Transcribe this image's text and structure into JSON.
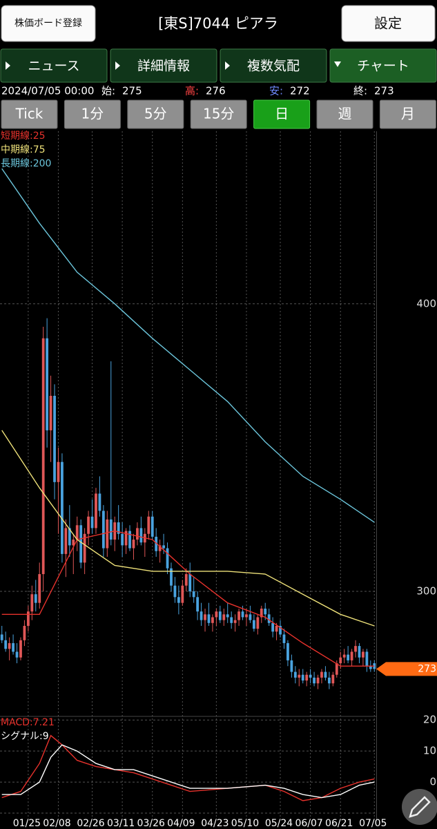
{
  "header": {
    "left_button": "株価ボード登録",
    "title": "[東S]7044 ピアラ",
    "right_button": "設定"
  },
  "tabs": [
    "ニュース",
    "詳細情報",
    "複数気配",
    "チャート"
  ],
  "selected_tab": 3,
  "info": {
    "datetime": "2024/07/05 00:00",
    "prices": [
      {
        "label": "始:",
        "value": 275,
        "color": "#ffffff"
      },
      {
        "label": "高:",
        "value": 276,
        "color": "#ff4444"
      },
      {
        "label": "安:",
        "value": 272,
        "color": "#6f8bff"
      },
      {
        "label": "終:",
        "value": 273,
        "color": "#ffffff"
      }
    ]
  },
  "periods": [
    "Tick",
    "1分",
    "5分",
    "15分",
    "日",
    "週",
    "月"
  ],
  "selected_period": 4,
  "chart_data": [
    {
      "type": "candlestick",
      "up_color": "#e05757",
      "down_color": "#4aa3df",
      "grid": true,
      "ylim": [
        257,
        460
      ],
      "yticks": [
        300,
        400
      ],
      "current_price": 273,
      "current_price_color": "#ff6a13",
      "categories": [
        null,
        null,
        null,
        null,
        null,
        null,
        null,
        "01/25",
        null,
        null,
        null,
        null,
        null,
        null,
        null,
        "02/08",
        null,
        null,
        null,
        null,
        null,
        null,
        null,
        null,
        "02/26",
        null,
        null,
        null,
        null,
        null,
        null,
        null,
        "03/11",
        null,
        null,
        null,
        null,
        null,
        null,
        null,
        "03/26",
        null,
        null,
        null,
        null,
        null,
        null,
        null,
        "04/09",
        null,
        null,
        null,
        null,
        null,
        null,
        null,
        null,
        "04/23",
        null,
        null,
        null,
        null,
        null,
        null,
        null,
        "05/10",
        null,
        null,
        null,
        null,
        null,
        null,
        null,
        null,
        "05/24",
        null,
        null,
        null,
        null,
        null,
        null,
        null,
        "06/07",
        null,
        null,
        null,
        null,
        null,
        null,
        null,
        "06/21",
        null,
        null,
        null,
        null,
        null,
        null,
        null,
        null,
        "07/05"
      ],
      "candles": [
        [
          285,
          288,
          282,
          283
        ],
        [
          283,
          286,
          279,
          280
        ],
        [
          280,
          284,
          276,
          282
        ],
        [
          282,
          285,
          278,
          279
        ],
        [
          279,
          282,
          275,
          277
        ],
        [
          277,
          284,
          276,
          283
        ],
        [
          283,
          290,
          281,
          288
        ],
        [
          288,
          295,
          286,
          293
        ],
        [
          293,
          302,
          290,
          299
        ],
        [
          299,
          304,
          293,
          296
        ],
        [
          296,
          310,
          294,
          306
        ],
        [
          306,
          392,
          300,
          388
        ],
        [
          388,
          395,
          350,
          356
        ],
        [
          356,
          375,
          345,
          368
        ],
        [
          368,
          372,
          332,
          338
        ],
        [
          338,
          350,
          320,
          345
        ],
        [
          345,
          348,
          310,
          313
        ],
        [
          313,
          325,
          305,
          322
        ],
        [
          322,
          330,
          312,
          316
        ],
        [
          316,
          320,
          306,
          318
        ],
        [
          318,
          326,
          314,
          323
        ],
        [
          323,
          325,
          308,
          310
        ],
        [
          310,
          322,
          306,
          320
        ],
        [
          320,
          328,
          316,
          326
        ],
        [
          326,
          332,
          320,
          322
        ],
        [
          322,
          336,
          320,
          334
        ],
        [
          334,
          340,
          326,
          328
        ],
        [
          328,
          330,
          312,
          315
        ],
        [
          315,
          328,
          312,
          325
        ],
        [
          325,
          380,
          316,
          318
        ],
        [
          318,
          326,
          314,
          324
        ],
        [
          324,
          330,
          318,
          320
        ],
        [
          320,
          324,
          312,
          316
        ],
        [
          316,
          322,
          313,
          321
        ],
        [
          321,
          323,
          314,
          315
        ],
        [
          315,
          320,
          311,
          318
        ],
        [
          318,
          324,
          316,
          322
        ],
        [
          322,
          326,
          316,
          317
        ],
        [
          317,
          322,
          312,
          320
        ],
        [
          320,
          328,
          318,
          326
        ],
        [
          326,
          328,
          318,
          319
        ],
        [
          319,
          322,
          312,
          314
        ],
        [
          314,
          318,
          310,
          316
        ],
        [
          316,
          320,
          313,
          315
        ],
        [
          315,
          317,
          306,
          308
        ],
        [
          308,
          310,
          300,
          302
        ],
        [
          302,
          305,
          296,
          298
        ],
        [
          298,
          302,
          292,
          296
        ],
        [
          296,
          304,
          295,
          302
        ],
        [
          302,
          308,
          300,
          306
        ],
        [
          306,
          310,
          298,
          300
        ],
        [
          300,
          305,
          296,
          298
        ],
        [
          298,
          300,
          290,
          293
        ],
        [
          293,
          296,
          288,
          290
        ],
        [
          290,
          294,
          286,
          292
        ],
        [
          292,
          296,
          288,
          289
        ],
        [
          289,
          292,
          286,
          291
        ],
        [
          291,
          294,
          288,
          293
        ],
        [
          293,
          295,
          289,
          290
        ],
        [
          290,
          294,
          288,
          292
        ],
        [
          292,
          296,
          289,
          291
        ],
        [
          291,
          293,
          287,
          289
        ],
        [
          289,
          292,
          286,
          290
        ],
        [
          290,
          294,
          288,
          293
        ],
        [
          293,
          295,
          290,
          291
        ],
        [
          291,
          294,
          288,
          292
        ],
        [
          292,
          295,
          289,
          290
        ],
        [
          290,
          292,
          286,
          287
        ],
        [
          287,
          292,
          285,
          291
        ],
        [
          291,
          295,
          289,
          294
        ],
        [
          294,
          296,
          290,
          292
        ],
        [
          292,
          294,
          288,
          289
        ],
        [
          289,
          291,
          284,
          286
        ],
        [
          286,
          289,
          283,
          288
        ],
        [
          288,
          290,
          284,
          285
        ],
        [
          285,
          287,
          280,
          282
        ],
        [
          282,
          283,
          274,
          276
        ],
        [
          276,
          278,
          270,
          272
        ],
        [
          272,
          274,
          268,
          270
        ],
        [
          270,
          273,
          267,
          271
        ],
        [
          271,
          273,
          268,
          269
        ],
        [
          269,
          272,
          267,
          271
        ],
        [
          271,
          273,
          268,
          270
        ],
        [
          270,
          272,
          267,
          268
        ],
        [
          268,
          271,
          266,
          270
        ],
        [
          270,
          273,
          268,
          272
        ],
        [
          272,
          274,
          269,
          270
        ],
        [
          270,
          272,
          266,
          268
        ],
        [
          268,
          272,
          267,
          271
        ],
        [
          271,
          276,
          270,
          275
        ],
        [
          275,
          279,
          273,
          277
        ],
        [
          277,
          280,
          275,
          278
        ],
        [
          278,
          281,
          275,
          276
        ],
        [
          276,
          280,
          274,
          279
        ],
        [
          279,
          283,
          277,
          281
        ],
        [
          281,
          282,
          275,
          277
        ],
        [
          277,
          280,
          274,
          279
        ],
        [
          279,
          280,
          272,
          274
        ],
        [
          274,
          276,
          272,
          273
        ],
        [
          275,
          276,
          272,
          273
        ]
      ],
      "series": [
        {
          "name": "短期線:25",
          "color": "#e8322c",
          "x": [
            0,
            10,
            20,
            30,
            40,
            50,
            60,
            70,
            80,
            90,
            99
          ],
          "values": [
            292,
            292,
            318,
            321,
            318,
            306,
            296,
            291,
            282,
            274,
            274
          ]
        },
        {
          "name": "中期線:75",
          "color": "#efe27a",
          "x": [
            0,
            10,
            20,
            30,
            40,
            50,
            60,
            70,
            80,
            90,
            99
          ],
          "values": [
            356,
            336,
            318,
            309,
            307,
            307,
            307,
            306,
            299,
            292,
            288
          ]
        },
        {
          "name": "長期線:200",
          "color": "#6cc6dc",
          "x": [
            0,
            10,
            20,
            30,
            40,
            50,
            60,
            70,
            80,
            90,
            99
          ],
          "values": [
            447,
            428,
            411,
            400,
            388,
            377,
            366,
            352,
            340,
            332,
            324
          ]
        }
      ]
    },
    {
      "type": "line",
      "ylim": [
        -12,
        20.5
      ],
      "yticks": [
        20,
        10,
        0,
        -10
      ],
      "grid": true,
      "series": [
        {
          "name": "MACD:7.21",
          "color": "#e8322c",
          "x": [
            0,
            5,
            10,
            13,
            16,
            20,
            25,
            30,
            35,
            40,
            45,
            50,
            60,
            70,
            75,
            80,
            85,
            90,
            95,
            99
          ],
          "values": [
            -5,
            -3,
            6,
            15,
            12,
            7,
            5,
            4,
            3,
            1,
            -1,
            -3,
            -2,
            -1,
            -3,
            -6,
            -5,
            -2,
            0,
            1
          ]
        },
        {
          "name": "シグナル:9",
          "color": "#ffffff",
          "x": [
            0,
            5,
            10,
            13,
            16,
            20,
            25,
            30,
            35,
            40,
            45,
            50,
            60,
            70,
            75,
            80,
            85,
            90,
            95,
            99
          ],
          "values": [
            -4,
            -4,
            0,
            8,
            12,
            10,
            6,
            4,
            4,
            2,
            0,
            -2,
            -2,
            -1,
            -2,
            -4,
            -5,
            -4,
            -1,
            0
          ]
        }
      ]
    }
  ]
}
